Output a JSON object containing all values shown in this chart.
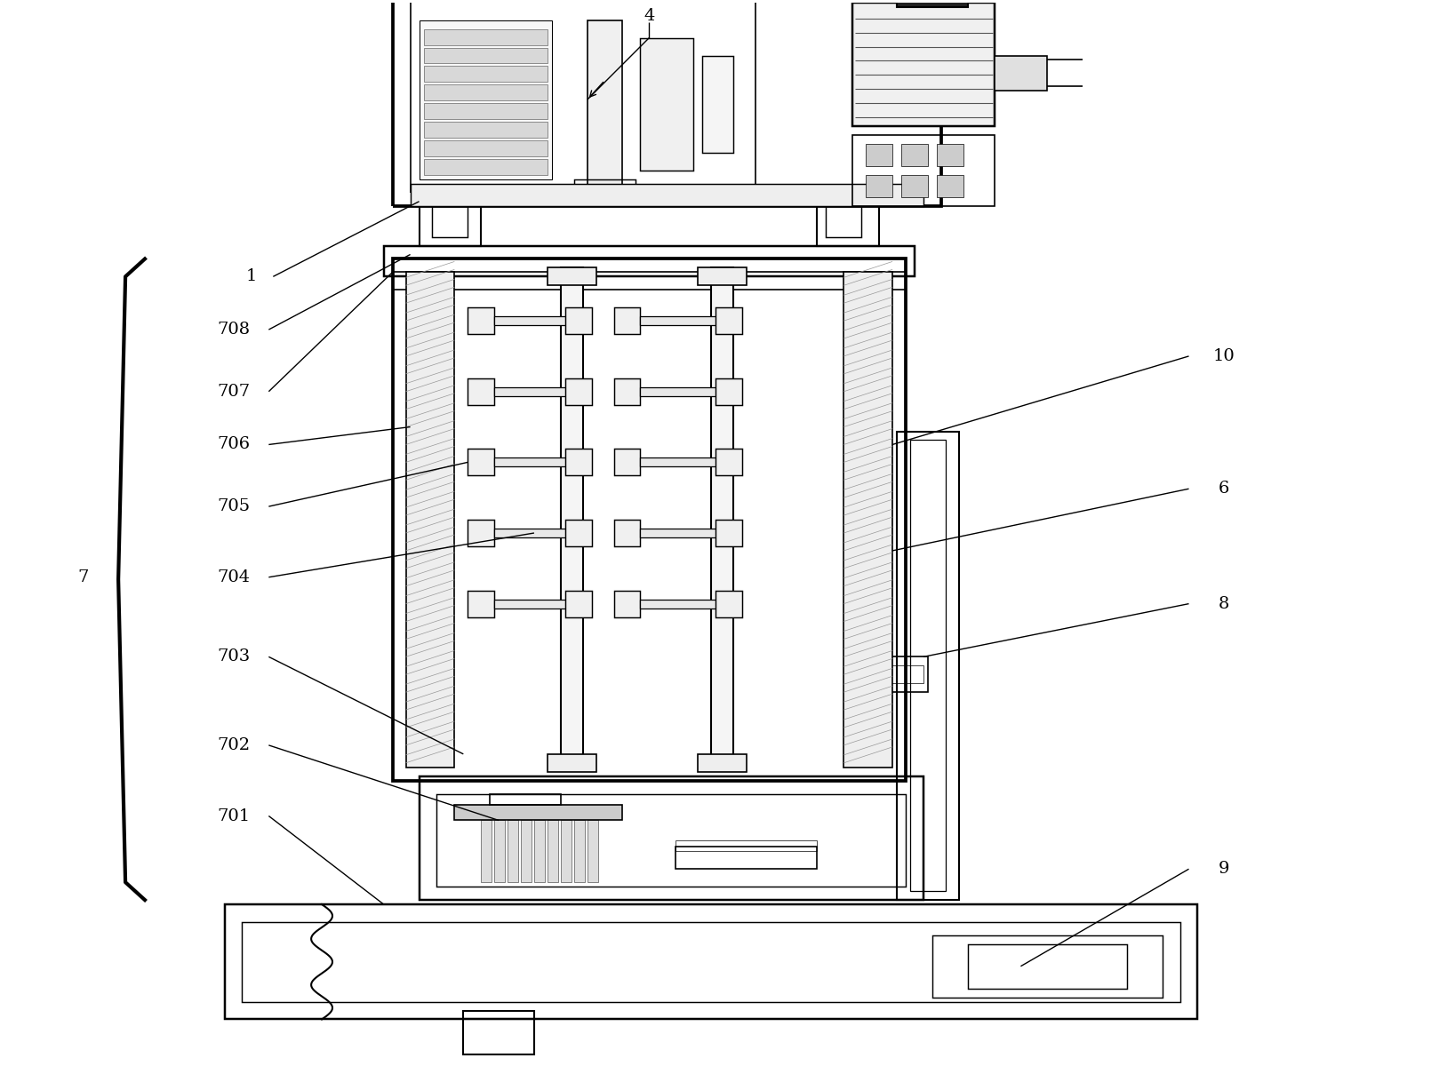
{
  "bg_color": "#ffffff",
  "lc": "#000000",
  "lw": 1.5,
  "fig_w": 16.1,
  "fig_h": 12.0,
  "dpi": 100,
  "label_fs": 14,
  "arrow_lw": 1.0
}
